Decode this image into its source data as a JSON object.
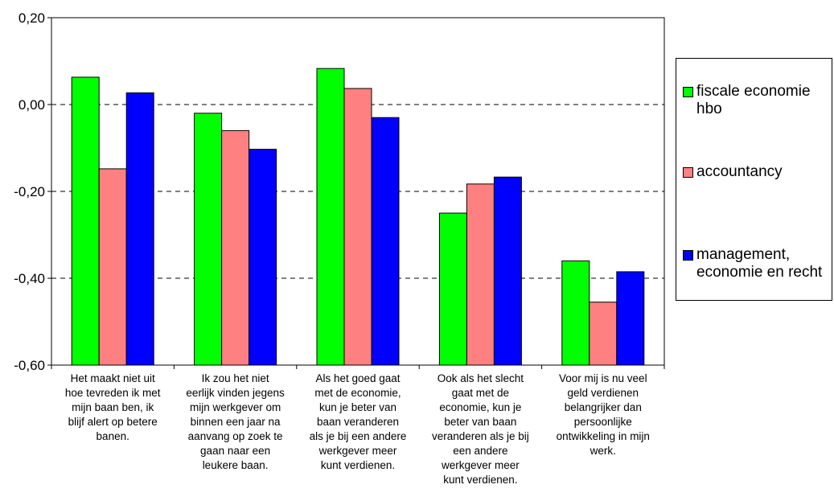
{
  "chart_data": {
    "type": "bar",
    "categories": [
      "Het maakt niet uit hoe tevreden ik met mijn baan ben, ik blijf alert op betere banen.",
      "Ik zou het niet eerlijk vinden jegens mijn werkgever om binnen een jaar na aanvang op zoek te gaan naar een leukere baan.",
      "Als het goed gaat met de economie, kun je beter van baan veranderen als je bij een andere werkgever meer kunt verdienen.",
      "Ook als het slecht gaat met de economie, kun je beter van baan veranderen als je bij een andere werkgever meer kunt verdienen.",
      "Voor mij is nu veel geld verdienen belangrijker dan persoonlijke ontwikkeling in mijn werk."
    ],
    "category_lines": [
      [
        "Het maakt niet uit",
        "hoe tevreden ik met",
        "mijn baan ben, ik",
        "blijf alert op betere",
        "banen."
      ],
      [
        "Ik zou het niet",
        "eerlijk vinden jegens",
        "mijn werkgever om",
        "binnen een jaar na",
        "aanvang op zoek te",
        "gaan naar een",
        "leukere baan."
      ],
      [
        "Als het goed gaat",
        "met de economie,",
        "kun je beter van",
        "baan veranderen",
        "als je bij een andere",
        "werkgever meer",
        "kunt verdienen."
      ],
      [
        "Ook als het slecht",
        "gaat met de",
        "economie, kun je",
        "beter van baan",
        "veranderen als je bij",
        "een andere",
        "werkgever meer",
        "kunt verdienen."
      ],
      [
        "Voor mij is nu veel",
        "geld verdienen",
        "belangrijker dan",
        "persoonlijke",
        "ontwikkeling in mijn",
        "werk."
      ]
    ],
    "series": [
      {
        "name": "fiscale economie hbo",
        "legend_lines": [
          "fiscale economie",
          "hbo"
        ],
        "color": "#00ff00",
        "values": [
          0.063,
          -0.02,
          0.083,
          -0.25,
          -0.36
        ]
      },
      {
        "name": "accountancy",
        "legend_lines": [
          "accountancy"
        ],
        "color": "#ff8080",
        "values": [
          -0.148,
          -0.06,
          0.037,
          -0.183,
          -0.455
        ]
      },
      {
        "name": "management, economie en recht",
        "legend_lines": [
          "management,",
          "economie en recht"
        ],
        "color": "#0000ff",
        "values": [
          0.027,
          -0.103,
          -0.03,
          -0.167,
          -0.385
        ]
      }
    ],
    "yticks": [
      "0,20",
      "0,00",
      "-0,20",
      "-0,40",
      "-0,60"
    ],
    "ytick_values": [
      0.2,
      0,
      -0.2,
      -0.4,
      -0.6
    ],
    "ylim": [
      -0.6,
      0.2
    ],
    "grid": true,
    "legend_position": "right",
    "title": "",
    "xlabel": "",
    "ylabel": ""
  }
}
